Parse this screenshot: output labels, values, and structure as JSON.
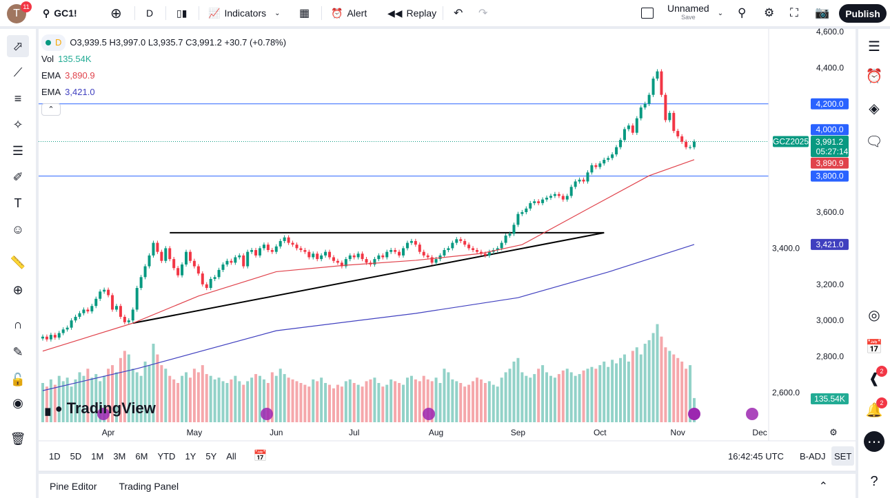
{
  "header": {
    "avatar_letter": "T",
    "notifications": "11",
    "symbol": "GC1!",
    "interval": "D",
    "indicators_label": "Indicators",
    "alert_label": "Alert",
    "replay_label": "Replay",
    "layout_name": "Unnamed",
    "layout_save": "Save",
    "publish_label": "Publish"
  },
  "legend": {
    "interval": "D",
    "ohlc": "O3,939.5 H3,997.0 L3,935.7 C3,991.2 +30.7 (+0.78%)",
    "vol_label": "Vol",
    "vol_value": "135.54K",
    "ema1_label": "EMA",
    "ema1_value": "3,890.9",
    "ema2_label": "EMA",
    "ema2_value": "3,421.0"
  },
  "colors": {
    "up": "#089981",
    "down": "#f23645",
    "ema_fast": "#e0424b",
    "ema_slow": "#3f3fbf",
    "hline": "#2962ff",
    "accent": "#2962ff"
  },
  "chart_data": {
    "type": "candlestick",
    "symbol_label": "GCZ2025",
    "countdown": "05:27:14",
    "ylim": [
      2500,
      4650
    ],
    "y_ticks": [
      "4,600.0",
      "4,400.0",
      "4,200.0",
      "4,000.0",
      "3,800.0",
      "3,600.0",
      "3,400.0",
      "3,200.0",
      "3,000.0",
      "2,800.0",
      "2,600.0"
    ],
    "y_tick_values": [
      4600,
      4400,
      4200,
      4000,
      3800,
      3600,
      3400,
      3200,
      3000,
      2800,
      2600
    ],
    "x_ticks": [
      {
        "label": "Apr",
        "index": 16
      },
      {
        "label": "May",
        "index": 37
      },
      {
        "label": "Jun",
        "index": 57
      },
      {
        "label": "Jul",
        "index": 76
      },
      {
        "label": "Aug",
        "index": 96
      },
      {
        "label": "Sep",
        "index": 116
      },
      {
        "label": "Oct",
        "index": 136
      },
      {
        "label": "Nov",
        "index": 155
      },
      {
        "label": "Dec",
        "index": 175
      }
    ],
    "closes": [
      2910,
      2895,
      2920,
      2905,
      2930,
      2950,
      2960,
      3000,
      3020,
      3040,
      3060,
      3050,
      3080,
      3120,
      3160,
      3170,
      3140,
      3060,
      3080,
      3020,
      2990,
      3000,
      3060,
      3180,
      3240,
      3300,
      3360,
      3430,
      3380,
      3330,
      3400,
      3340,
      3290,
      3250,
      3310,
      3380,
      3330,
      3300,
      3260,
      3200,
      3180,
      3230,
      3240,
      3280,
      3310,
      3330,
      3320,
      3350,
      3360,
      3300,
      3380,
      3390,
      3360,
      3400,
      3420,
      3390,
      3380,
      3410,
      3440,
      3460,
      3430,
      3420,
      3400,
      3390,
      3380,
      3350,
      3370,
      3340,
      3360,
      3380,
      3350,
      3330,
      3320,
      3300,
      3340,
      3360,
      3350,
      3370,
      3340,
      3320,
      3310,
      3340,
      3360,
      3350,
      3380,
      3390,
      3380,
      3360,
      3400,
      3430,
      3440,
      3420,
      3380,
      3360,
      3350,
      3320,
      3340,
      3360,
      3390,
      3400,
      3430,
      3450,
      3440,
      3420,
      3400,
      3390,
      3380,
      3370,
      3360,
      3380,
      3390,
      3400,
      3430,
      3470,
      3480,
      3530,
      3590,
      3600,
      3620,
      3650,
      3660,
      3650,
      3670,
      3680,
      3690,
      3700,
      3690,
      3670,
      3690,
      3740,
      3770,
      3780,
      3770,
      3820,
      3860,
      3850,
      3870,
      3890,
      3900,
      3920,
      3960,
      4000,
      4060,
      4080,
      4040,
      4120,
      4180,
      4200,
      4250,
      4340,
      4380,
      4250,
      4110,
      4150,
      4050,
      4020,
      3990,
      3960,
      3960,
      3991.2
    ],
    "volumes_k": [
      220,
      200,
      240,
      210,
      260,
      230,
      250,
      200,
      240,
      280,
      260,
      300,
      250,
      270,
      230,
      260,
      300,
      320,
      280,
      360,
      400,
      380,
      300,
      280,
      260,
      340,
      320,
      440,
      380,
      320,
      300,
      260,
      240,
      220,
      260,
      280,
      250,
      300,
      280,
      320,
      270,
      260,
      240,
      250,
      230,
      220,
      240,
      260,
      230,
      210,
      230,
      250,
      270,
      260,
      240,
      220,
      280,
      260,
      300,
      270,
      250,
      240,
      230,
      220,
      210,
      200,
      240,
      230,
      250,
      220,
      210,
      190,
      210,
      200,
      230,
      240,
      220,
      210,
      200,
      230,
      240,
      250,
      220,
      200,
      210,
      240,
      230,
      220,
      210,
      250,
      260,
      240,
      230,
      260,
      240,
      230,
      250,
      220,
      300,
      280,
      240,
      230,
      220,
      200,
      210,
      230,
      250,
      240,
      220,
      230,
      210,
      200,
      250,
      280,
      300,
      340,
      360,
      280,
      260,
      250,
      270,
      300,
      320,
      280,
      260,
      250,
      270,
      290,
      300,
      280,
      260,
      270,
      290,
      300,
      310,
      300,
      320,
      340,
      310,
      350,
      330,
      360,
      380,
      340,
      400,
      420,
      380,
      440,
      460,
      500,
      550,
      480,
      420,
      400,
      380,
      360,
      340,
      300,
      320,
      135.54
    ],
    "last_price": "3,991.2",
    "volume_label": "135.54K",
    "ema_fast": {
      "value": "3,890.9",
      "points": [
        [
          0,
          2830
        ],
        [
          22,
          2985
        ],
        [
          38,
          3135
        ],
        [
          57,
          3270
        ],
        [
          74,
          3306
        ],
        [
          91,
          3333
        ],
        [
          107,
          3371
        ],
        [
          117,
          3420
        ],
        [
          134,
          3630
        ],
        [
          148,
          3802
        ],
        [
          159,
          3890.9
        ]
      ]
    },
    "ema_slow": {
      "value": "3,421.0",
      "points": [
        [
          0,
          2611
        ],
        [
          23,
          2733
        ],
        [
          57,
          2943
        ],
        [
          91,
          3039
        ],
        [
          116,
          3126
        ],
        [
          138,
          3268
        ],
        [
          159,
          3421
        ]
      ]
    },
    "horizontal_lines": [
      {
        "price": 4200,
        "label": "4,200.0"
      },
      {
        "price": 3800,
        "label": "3,800.0"
      }
    ],
    "price_labels": [
      {
        "price": 4000,
        "label": "4,000.0"
      }
    ],
    "trendlines": [
      [
        [
          31,
          3486
        ],
        [
          137,
          3486
        ]
      ],
      [
        [
          22,
          2985
        ],
        [
          137,
          3486
        ]
      ]
    ]
  },
  "timeaxis": {
    "ranges": [
      "1D",
      "5D",
      "1M",
      "3M",
      "6M",
      "YTD",
      "1Y",
      "5Y",
      "All"
    ],
    "clock": "16:42:45 UTC",
    "badj": "B-ADJ",
    "set": "SET"
  },
  "bottom": {
    "pine": "Pine Editor",
    "trading": "Trading Panel"
  },
  "logo": "TradingView",
  "right": {
    "notif1": "2",
    "notif2": "2"
  }
}
